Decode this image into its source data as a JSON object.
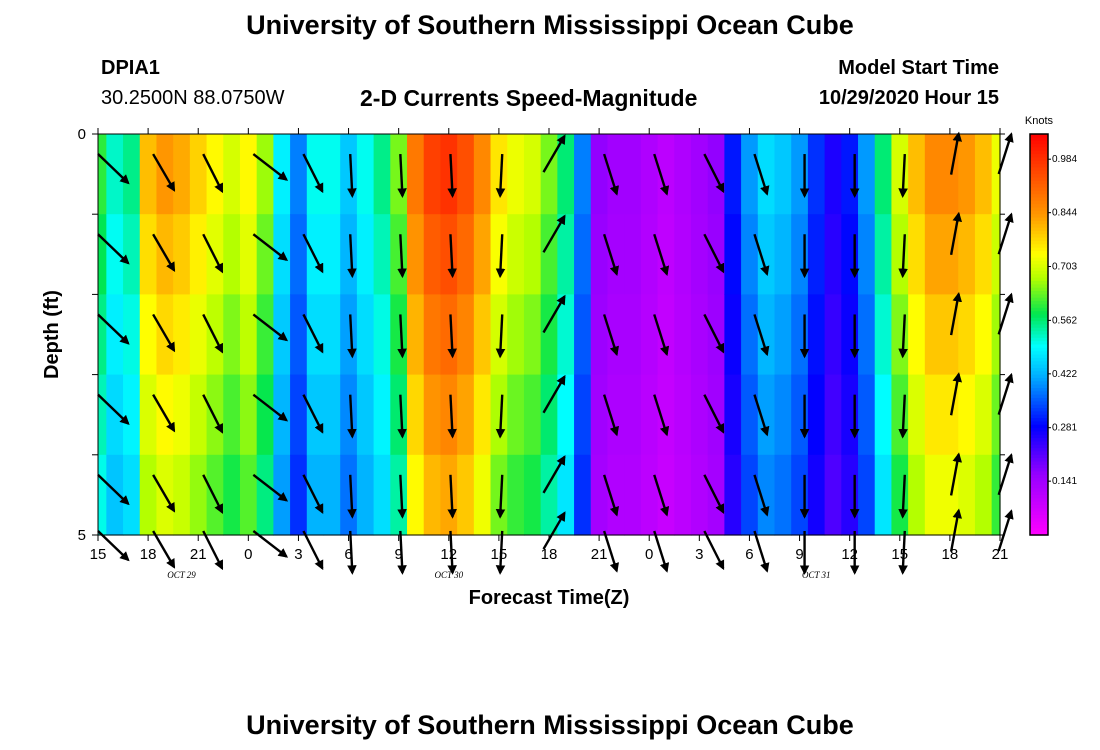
{
  "header": {
    "title": "University of Southern Mississippi Ocean Cube",
    "station": "DPIA1",
    "coords": "30.2500N 88.0750W",
    "product": "2-D Currents Speed-Magnitude",
    "model_start_label": "Model Start Time",
    "model_start_value": "10/29/2020 Hour 15"
  },
  "footer": {
    "title": "University of Southern Mississippi Ocean Cube"
  },
  "chart_data": {
    "type": "heatmap",
    "xlabel": "Forecast Time(Z)",
    "ylabel": "Depth (ft)",
    "y_ticks": [
      "0",
      "5"
    ],
    "y_range": [
      0,
      5
    ],
    "x_tick_labels": [
      "15",
      "18",
      "21",
      "0",
      "3",
      "6",
      "9",
      "12",
      "15",
      "18",
      "21",
      "0",
      "3",
      "6",
      "9",
      "12",
      "15",
      "18",
      "21"
    ],
    "date_labels": [
      {
        "label": "OCT 29",
        "hour_index": 5
      },
      {
        "label": "OCT 30",
        "hour_index": 21
      },
      {
        "label": "OCT 31",
        "hour_index": 43
      }
    ],
    "colorbar": {
      "unit": "Knots",
      "ticks": [
        "0.984",
        "0.844",
        "0.703",
        "0.562",
        "0.422",
        "0.281",
        "0.141"
      ],
      "range": [
        0,
        1.05
      ]
    },
    "hours": 55,
    "speed_by_hour": [
      0.6,
      0.52,
      0.55,
      0.8,
      0.84,
      0.82,
      0.78,
      0.74,
      0.7,
      0.74,
      0.66,
      0.48,
      0.38,
      0.5,
      0.5,
      0.44,
      0.5,
      0.55,
      0.64,
      0.88,
      0.96,
      0.98,
      0.94,
      0.86,
      0.76,
      0.72,
      0.7,
      0.64,
      0.56,
      0.38,
      0.16,
      0.14,
      0.14,
      0.12,
      0.1,
      0.12,
      0.14,
      0.16,
      0.3,
      0.4,
      0.46,
      0.44,
      0.4,
      0.32,
      0.26,
      0.3,
      0.4,
      0.56,
      0.7,
      0.8,
      0.86,
      0.86,
      0.84,
      0.8,
      0.72
    ],
    "arrow_rows_depth_ft": [
      0.25,
      1.25,
      2.25,
      3.25,
      4.25,
      4.95
    ],
    "arrows": [
      {
        "hour": 0,
        "u": 0.72,
        "v": -0.69
      },
      {
        "hour": 3.3,
        "u": 0.5,
        "v": -0.86
      },
      {
        "hour": 6.3,
        "u": 0.45,
        "v": -0.89
      },
      {
        "hour": 9.3,
        "u": 0.79,
        "v": -0.61
      },
      {
        "hour": 12.3,
        "u": 0.45,
        "v": -0.89
      },
      {
        "hour": 15.1,
        "u": 0.05,
        "v": -1.0
      },
      {
        "hour": 18.1,
        "u": 0.05,
        "v": -1.0
      },
      {
        "hour": 21.1,
        "u": 0.05,
        "v": -1.0
      },
      {
        "hour": 24.2,
        "u": -0.05,
        "v": -1.0
      },
      {
        "hour": 27.3,
        "u": 0.5,
        "v": 0.86
      },
      {
        "hour": 30.3,
        "u": 0.3,
        "v": -0.95
      },
      {
        "hour": 33.3,
        "u": 0.3,
        "v": -0.95
      },
      {
        "hour": 36.3,
        "u": 0.45,
        "v": -0.89
      },
      {
        "hour": 39.3,
        "u": 0.3,
        "v": -0.95
      },
      {
        "hour": 42.3,
        "u": 0.0,
        "v": -1.0
      },
      {
        "hour": 45.3,
        "u": 0.0,
        "v": -1.0
      },
      {
        "hour": 48.3,
        "u": -0.05,
        "v": -1.0
      },
      {
        "hour": 51.3,
        "u": 0.18,
        "v": 0.98
      },
      {
        "hour": 54.3,
        "u": 0.3,
        "v": 0.95
      }
    ]
  }
}
